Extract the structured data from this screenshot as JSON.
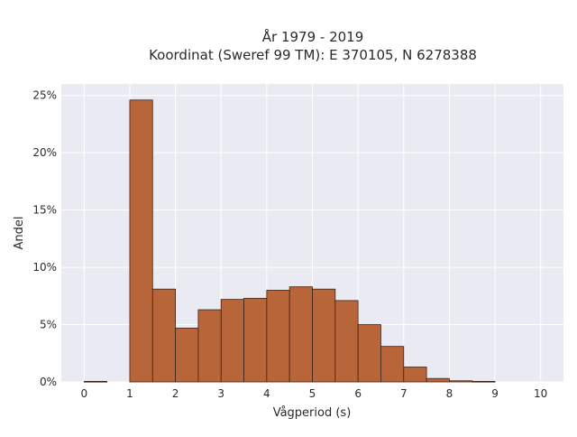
{
  "chart_data": {
    "type": "bar",
    "title": "År 1979 - 2019",
    "subtitle": "Koordinat (Sweref 99 TM): E 370105, N 6278388",
    "xlabel": "Vågperiod (s)",
    "ylabel": "Andel",
    "xlim": [
      -0.5,
      10.5
    ],
    "ylim": [
      0,
      26
    ],
    "x_ticks": [
      0,
      1,
      2,
      3,
      4,
      5,
      6,
      7,
      8,
      9,
      10
    ],
    "x_tick_labels": [
      "0",
      "1",
      "2",
      "3",
      "4",
      "5",
      "6",
      "7",
      "8",
      "9",
      "10"
    ],
    "y_ticks": [
      0,
      5,
      10,
      15,
      20,
      25
    ],
    "y_tick_labels": [
      "0%",
      "5%",
      "10%",
      "15%",
      "20%",
      "25%"
    ],
    "grid": true,
    "bin_width": 0.5,
    "bins": [
      {
        "start": 0.0,
        "value": 0.05
      },
      {
        "start": 0.5,
        "value": 0
      },
      {
        "start": 1.0,
        "value": 24.6
      },
      {
        "start": 1.5,
        "value": 8.1
      },
      {
        "start": 2.0,
        "value": 4.7
      },
      {
        "start": 2.5,
        "value": 6.3
      },
      {
        "start": 3.0,
        "value": 7.2
      },
      {
        "start": 3.5,
        "value": 7.3
      },
      {
        "start": 4.0,
        "value": 8.0
      },
      {
        "start": 4.5,
        "value": 8.3
      },
      {
        "start": 5.0,
        "value": 8.1
      },
      {
        "start": 5.5,
        "value": 7.1
      },
      {
        "start": 6.0,
        "value": 5.0
      },
      {
        "start": 6.5,
        "value": 3.1
      },
      {
        "start": 7.0,
        "value": 1.3
      },
      {
        "start": 7.5,
        "value": 0.3
      },
      {
        "start": 8.0,
        "value": 0.1
      },
      {
        "start": 8.5,
        "value": 0.05
      }
    ],
    "colors": {
      "bar_fill": "#b8653a",
      "bar_stroke": "#3a2418",
      "plot_background": "#eaeaf2",
      "grid": "#ffffff"
    }
  }
}
